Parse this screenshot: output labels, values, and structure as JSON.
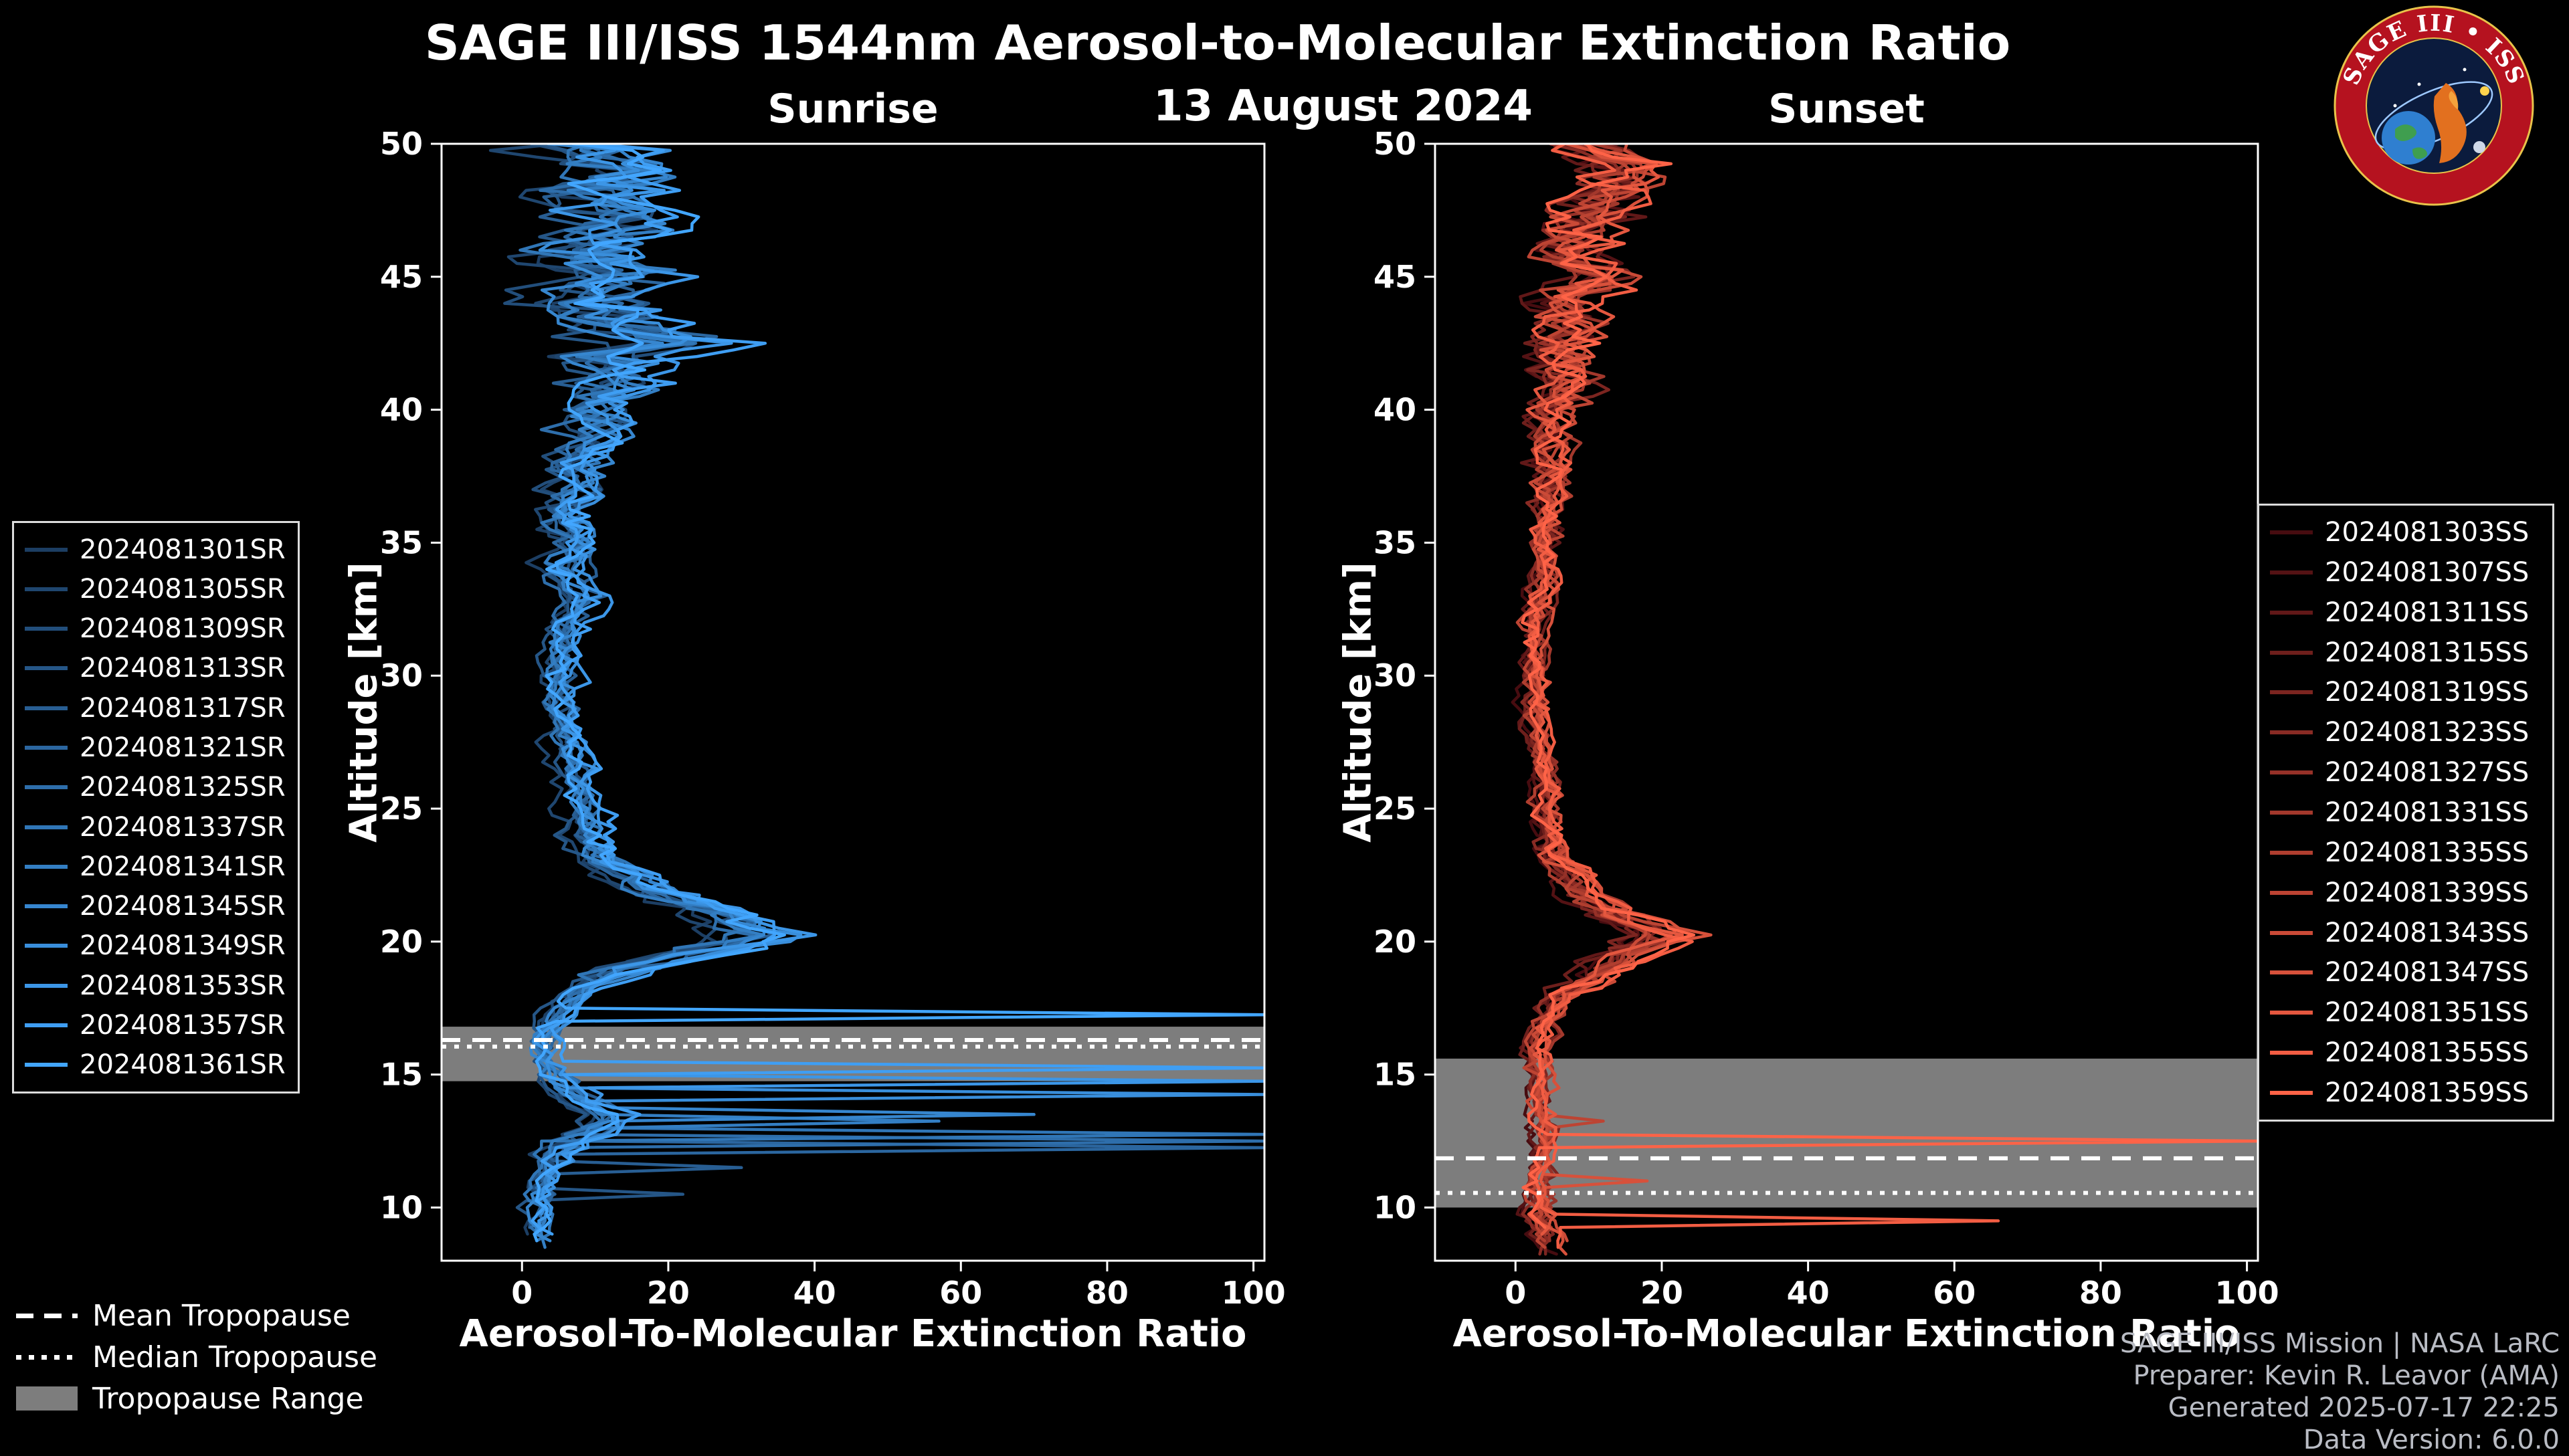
{
  "title": "SAGE III/ISS 1544nm Aerosol-to-Molecular Extinction Ratio",
  "subtitle": "13 August 2024",
  "logo": {
    "text": "SAGE III • ISS"
  },
  "tropopause_legend": {
    "mean": "Mean Tropopause",
    "median": "Median Tropopause",
    "range": "Tropopause Range"
  },
  "footer": {
    "lines": [
      "SAGE III/ISS Mission | NASA LaRC",
      "Preparer: Kevin R. Leavor (AMA)",
      "Generated 2025-07-17 22:25",
      "Data Version: 6.0.0"
    ]
  },
  "chart_data": {
    "type": "line",
    "title": "SAGE III/ISS 1544nm Aerosol-to-Molecular Extinction Ratio",
    "subtitle": "13 August 2024",
    "xlabel": "Aerosol-To-Molecular Extinction Ratio",
    "ylabel": "Altitude [km]",
    "xlim": [
      -11,
      101.5
    ],
    "ylim": [
      8,
      50
    ],
    "xticks": [
      0,
      20,
      40,
      60,
      80,
      100
    ],
    "yticks": [
      10,
      15,
      20,
      25,
      30,
      35,
      40,
      45,
      50
    ],
    "grid": false,
    "legend_position": "outside",
    "panels": [
      {
        "id": "sunrise",
        "title": "Sunrise",
        "tropopause": {
          "mean": 16.3,
          "median": 16.05,
          "range": [
            14.75,
            16.8
          ]
        },
        "series": [
          {
            "label": "2024081301SR",
            "color": "#1c3e63"
          },
          {
            "label": "2024081305SR",
            "color": "#1f466f"
          },
          {
            "label": "2024081309SR",
            "color": "#224e7b"
          },
          {
            "label": "2024081313SR",
            "color": "#255687"
          },
          {
            "label": "2024081317SR",
            "color": "#285e93"
          },
          {
            "label": "2024081321SR",
            "color": "#2b669f"
          },
          {
            "label": "2024081325SR",
            "color": "#2e6eab"
          },
          {
            "label": "2024081337SR",
            "color": "#3076b7"
          },
          {
            "label": "2024081341SR",
            "color": "#337ec3"
          },
          {
            "label": "2024081345SR",
            "color": "#3686cf"
          },
          {
            "label": "2024081349SR",
            "color": "#398edb"
          },
          {
            "label": "2024081353SR",
            "color": "#3c96e7"
          },
          {
            "label": "2024081357SR",
            "color": "#3f9ef3"
          },
          {
            "label": "2024081361SR",
            "color": "#42a6ff"
          }
        ],
        "base_profile": [
          [
            50,
            6
          ],
          [
            49,
            14
          ],
          [
            48,
            10
          ],
          [
            47,
            16
          ],
          [
            46,
            8
          ],
          [
            45,
            12
          ],
          [
            44,
            9
          ],
          [
            43,
            14
          ],
          [
            42.5,
            20
          ],
          [
            42,
            10
          ],
          [
            41,
            12
          ],
          [
            40,
            9
          ],
          [
            39,
            10
          ],
          [
            38,
            7
          ],
          [
            37,
            8
          ],
          [
            36,
            6
          ],
          [
            35,
            7
          ],
          [
            34,
            5
          ],
          [
            33,
            8
          ],
          [
            32,
            6
          ],
          [
            31,
            5
          ],
          [
            30,
            5
          ],
          [
            29,
            5
          ],
          [
            28,
            6
          ],
          [
            27,
            6
          ],
          [
            26,
            7
          ],
          [
            25,
            8
          ],
          [
            24,
            9
          ],
          [
            23,
            11
          ],
          [
            22,
            18
          ],
          [
            21,
            28
          ],
          [
            20.3,
            32
          ],
          [
            20,
            30
          ],
          [
            19.5,
            22
          ],
          [
            19,
            14
          ],
          [
            18.5,
            10
          ],
          [
            18,
            7
          ],
          [
            17.5,
            5
          ],
          [
            17,
            4
          ],
          [
            16.5,
            3
          ],
          [
            16,
            3
          ],
          [
            15.5,
            3
          ],
          [
            15,
            4
          ],
          [
            14.5,
            6
          ],
          [
            14,
            8
          ],
          [
            13.5,
            12
          ],
          [
            13,
            10
          ],
          [
            12.5,
            6
          ],
          [
            12,
            4
          ],
          [
            11,
            3
          ],
          [
            10,
            2
          ],
          [
            9,
            2
          ],
          [
            8,
            2
          ]
        ],
        "noise_amp": [
          [
            50,
            9
          ],
          [
            46,
            9
          ],
          [
            42,
            8
          ],
          [
            40,
            6
          ],
          [
            38,
            4
          ],
          [
            35,
            3
          ],
          [
            30,
            2
          ],
          [
            25,
            2
          ],
          [
            22,
            4
          ],
          [
            20,
            5
          ],
          [
            19,
            3
          ],
          [
            17,
            1.5
          ],
          [
            15,
            2
          ],
          [
            13,
            3
          ],
          [
            11,
            2
          ],
          [
            8,
            1.5
          ]
        ],
        "spikes": [
          {
            "series_index": 13,
            "altitude": 17.3,
            "value": 101.5
          },
          {
            "series_index": 12,
            "altitude": 15.2,
            "value": 101.5
          },
          {
            "series_index": 11,
            "altitude": 14.7,
            "value": 101.5
          },
          {
            "series_index": 10,
            "altitude": 14.25,
            "value": 101.5
          },
          {
            "series_index": 9,
            "altitude": 13.6,
            "value": 70
          },
          {
            "series_index": 8,
            "altitude": 13.35,
            "value": 57
          },
          {
            "series_index": 7,
            "altitude": 12.8,
            "value": 101.5
          },
          {
            "series_index": 6,
            "altitude": 12.5,
            "value": 101.5
          },
          {
            "series_index": 5,
            "altitude": 12.2,
            "value": 101.5
          },
          {
            "series_index": 4,
            "altitude": 11.5,
            "value": 30
          },
          {
            "series_index": 3,
            "altitude": 10.4,
            "value": 22
          }
        ]
      },
      {
        "id": "sunset",
        "title": "Sunset",
        "tropopause": {
          "mean": 11.85,
          "median": 10.55,
          "range": [
            10.0,
            15.6
          ]
        },
        "series": [
          {
            "label": "2024081303SS",
            "color": "#470c10"
          },
          {
            "label": "2024081307SS",
            "color": "#541214"
          },
          {
            "label": "2024081311SS",
            "color": "#611818"
          },
          {
            "label": "2024081315SS",
            "color": "#6e1f1c"
          },
          {
            "label": "2024081319SS",
            "color": "#7c2520"
          },
          {
            "label": "2024081323SS",
            "color": "#892b24"
          },
          {
            "label": "2024081327SS",
            "color": "#963128"
          },
          {
            "label": "2024081331SS",
            "color": "#a3382c"
          },
          {
            "label": "2024081335SS",
            "color": "#b03e2f"
          },
          {
            "label": "2024081339SS",
            "color": "#bd4433"
          },
          {
            "label": "2024081343SS",
            "color": "#ca4a37"
          },
          {
            "label": "2024081347SS",
            "color": "#d7513b"
          },
          {
            "label": "2024081351SS",
            "color": "#e4573f"
          },
          {
            "label": "2024081355SS",
            "color": "#f25d43"
          },
          {
            "label": "2024081359SS",
            "color": "#ff6347"
          }
        ],
        "base_profile": [
          [
            50,
            10
          ],
          [
            49,
            16
          ],
          [
            48,
            12
          ],
          [
            47,
            10
          ],
          [
            46,
            8
          ],
          [
            45,
            10
          ],
          [
            44,
            6
          ],
          [
            43,
            8
          ],
          [
            42,
            6
          ],
          [
            41,
            7
          ],
          [
            40,
            5
          ],
          [
            38,
            5
          ],
          [
            36,
            4
          ],
          [
            34,
            4
          ],
          [
            32,
            3
          ],
          [
            30,
            3
          ],
          [
            28,
            3
          ],
          [
            26,
            4
          ],
          [
            25,
            4
          ],
          [
            24,
            5
          ],
          [
            23,
            6
          ],
          [
            22,
            9
          ],
          [
            21,
            14
          ],
          [
            20.3,
            20
          ],
          [
            20,
            18
          ],
          [
            19.5,
            14
          ],
          [
            19,
            12
          ],
          [
            18.5,
            10
          ],
          [
            18,
            6
          ],
          [
            17,
            4
          ],
          [
            16,
            3
          ],
          [
            15,
            3
          ],
          [
            14,
            3
          ],
          [
            13,
            4
          ],
          [
            12,
            4
          ],
          [
            11,
            3
          ],
          [
            10,
            3
          ],
          [
            9,
            4
          ],
          [
            8,
            5
          ]
        ],
        "noise_amp": [
          [
            50,
            7
          ],
          [
            46,
            6
          ],
          [
            43,
            5
          ],
          [
            40,
            3
          ],
          [
            35,
            2
          ],
          [
            30,
            1.5
          ],
          [
            25,
            1.5
          ],
          [
            22,
            3
          ],
          [
            20,
            4
          ],
          [
            18,
            2
          ],
          [
            15,
            1.5
          ],
          [
            12,
            1.5
          ],
          [
            8,
            2
          ]
        ],
        "spikes": [
          {
            "series_index": 14,
            "altitude": 12.6,
            "value": 101.5
          },
          {
            "series_index": 13,
            "altitude": 9.5,
            "value": 66
          },
          {
            "series_index": 11,
            "altitude": 10.9,
            "value": 18
          },
          {
            "series_index": 9,
            "altitude": 13.2,
            "value": 12
          }
        ]
      }
    ]
  }
}
